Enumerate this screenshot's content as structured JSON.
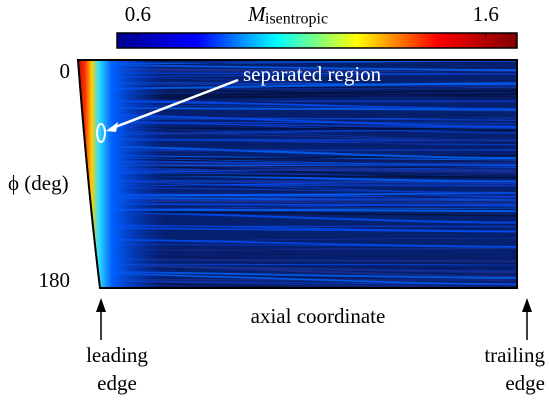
{
  "chart_data": {
    "type": "contour",
    "title": "M",
    "title_subscript": "isentropic",
    "colorbar": {
      "lim": [
        0.54,
        1.69
      ],
      "ticks": [
        0.6,
        1.6
      ],
      "colors": [
        "#00008f",
        "#0000ff",
        "#00ffff",
        "#ffff00",
        "#ff0000",
        "#800000"
      ]
    },
    "ylabel": "ϕ (deg)",
    "xlabel": "axial coordinate",
    "ylim": [
      0,
      180
    ],
    "yticks": [
      0,
      180
    ],
    "annotation": "separated region",
    "leading_edge": [
      "leading",
      "edge"
    ],
    "trailing_edge": [
      "trailing",
      "edge"
    ]
  }
}
